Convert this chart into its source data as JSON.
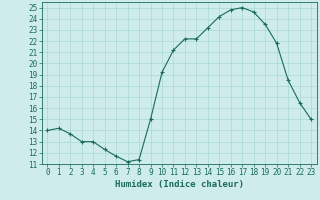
{
  "x": [
    0,
    1,
    2,
    3,
    4,
    5,
    6,
    7,
    8,
    9,
    10,
    11,
    12,
    13,
    14,
    15,
    16,
    17,
    18,
    19,
    20,
    21,
    22,
    23
  ],
  "y": [
    14.0,
    14.2,
    13.7,
    13.0,
    13.0,
    12.3,
    11.7,
    11.2,
    11.4,
    15.0,
    19.2,
    21.2,
    22.2,
    22.2,
    23.2,
    24.2,
    24.8,
    25.0,
    24.6,
    23.5,
    21.8,
    18.5,
    16.5,
    15.0
  ],
  "line_color": "#1a6b5a",
  "marker_color": "#1a6b5a",
  "bg_color": "#cdecea",
  "grid_color": "#a8d8d4",
  "axis_color": "#1a6b5a",
  "tick_color": "#1a6b5a",
  "xlabel": "Humidex (Indice chaleur)",
  "xlim": [
    -0.5,
    23.5
  ],
  "ylim": [
    11,
    25.5
  ],
  "yticks": [
    11,
    12,
    13,
    14,
    15,
    16,
    17,
    18,
    19,
    20,
    21,
    22,
    23,
    24,
    25
  ],
  "xtick_labels": [
    "0",
    "1",
    "2",
    "3",
    "4",
    "5",
    "6",
    "7",
    "8",
    "9",
    "10",
    "11",
    "12",
    "13",
    "14",
    "15",
    "16",
    "17",
    "18",
    "19",
    "20",
    "21",
    "22",
    "23"
  ],
  "font_size_label": 6.5,
  "font_size_tick": 5.5
}
